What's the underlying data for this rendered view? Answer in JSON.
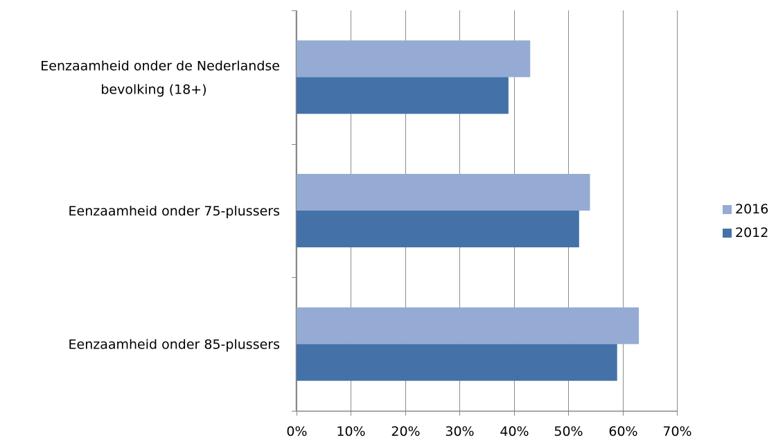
{
  "chart_data": {
    "type": "bar",
    "orientation": "horizontal",
    "categories": [
      [
        "Eenzaamheid onder de Nederlandse",
        "bevolking (18+)"
      ],
      [
        "Eenzaamheid onder 75-plussers"
      ],
      [
        "Eenzaamheid onder 85-plussers"
      ]
    ],
    "series": [
      {
        "name": "2016",
        "color": "#95abd3",
        "values": [
          43,
          54,
          63
        ]
      },
      {
        "name": "2012",
        "color": "#4472a8",
        "values": [
          39,
          52,
          59
        ]
      }
    ],
    "xlim": [
      0,
      70
    ],
    "xticks": [
      "0%",
      "10%",
      "20%",
      "30%",
      "40%",
      "50%",
      "60%",
      "70%"
    ],
    "grid": true,
    "legend_position": "right",
    "legend": [
      "2016",
      "2012"
    ]
  }
}
